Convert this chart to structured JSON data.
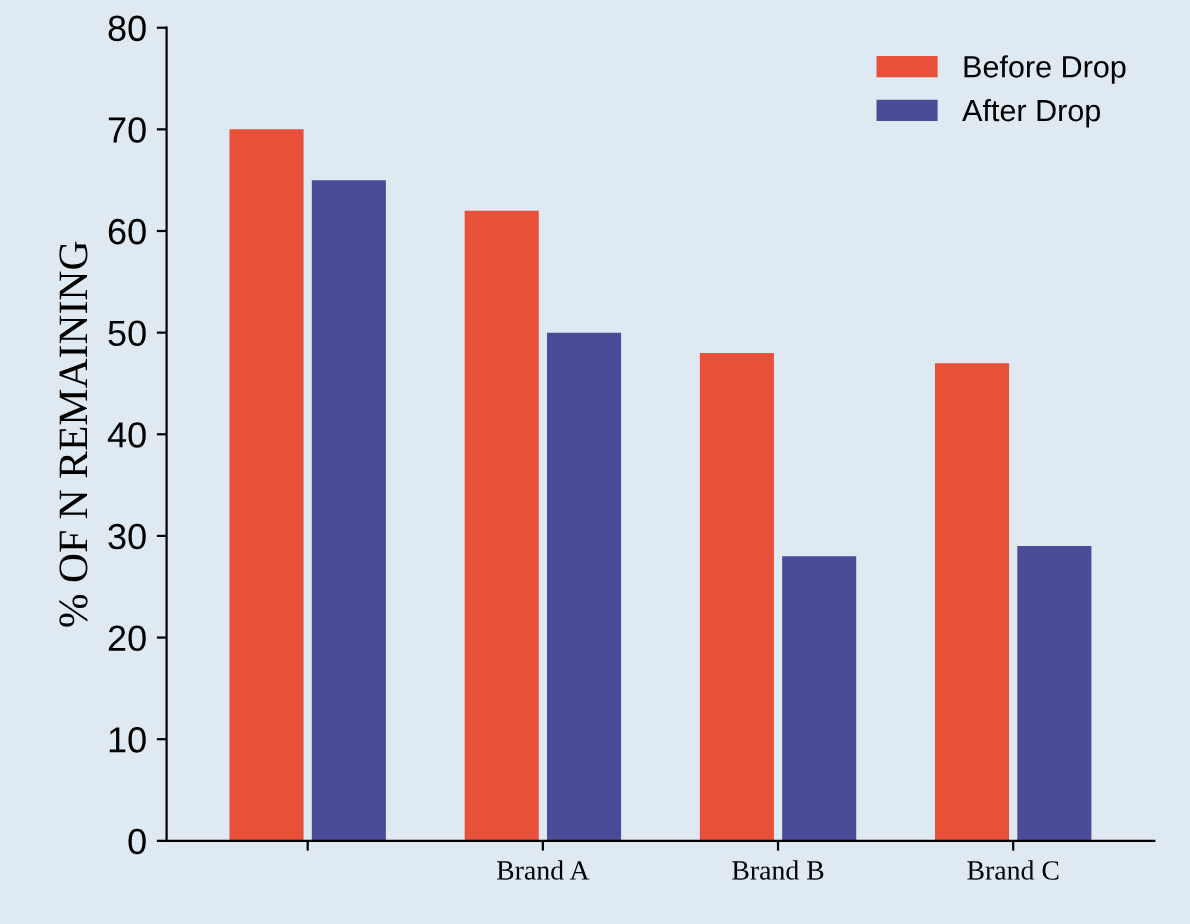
{
  "chart_data": {
    "type": "bar",
    "ylabel": "% OF N REMAINING",
    "categories": [
      null,
      "Brand A",
      "Brand B",
      "Brand C"
    ],
    "series": [
      {
        "name": "Before Drop",
        "color": "#e8503a",
        "values": [
          70,
          62,
          48,
          47
        ]
      },
      {
        "name": "After Drop",
        "color": "#4a4c98",
        "values": [
          65,
          50,
          28,
          29
        ]
      }
    ],
    "ylim": [
      0,
      80
    ],
    "yticks": [
      0,
      10,
      20,
      30,
      40,
      50,
      60,
      70,
      80
    ],
    "grid": false,
    "legend": "top right"
  }
}
